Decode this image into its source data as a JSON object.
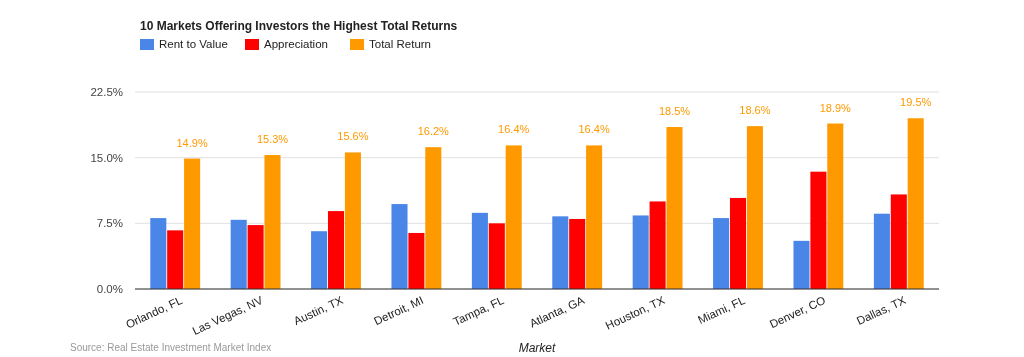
{
  "chart_data": {
    "type": "bar",
    "title": "10 Markets Offering Investors the Highest Total Returns",
    "xlabel": "Market",
    "annotations": [
      "Source: Real Estate Investment Market Index"
    ],
    "categories": [
      "Orlando, FL",
      "Las Vegas, NV",
      "Austin, TX",
      "Detroit, MI",
      "Tampa, FL",
      "Atlanta, GA",
      "Houston, TX",
      "Miami, FL",
      "Denver, CO",
      "Dallas, TX"
    ],
    "series": [
      {
        "name": "Rent to Value",
        "color": "#4a86e8",
        "values": [
          8.1,
          7.9,
          6.6,
          9.7,
          8.7,
          8.3,
          8.4,
          8.1,
          5.5,
          8.6
        ]
      },
      {
        "name": "Appreciation",
        "color": "#ff0000",
        "values": [
          6.7,
          7.3,
          8.9,
          6.4,
          7.5,
          8.0,
          10.0,
          10.4,
          13.4,
          10.8
        ]
      },
      {
        "name": "Total Return",
        "color": "#ff9900",
        "values": [
          14.9,
          15.3,
          15.6,
          16.2,
          16.4,
          16.4,
          18.5,
          18.6,
          18.9,
          19.5
        ],
        "value_labels": [
          "14.9%",
          "15.3%",
          "15.6%",
          "16.2%",
          "16.4%",
          "16.4%",
          "18.5%",
          "18.6%",
          "18.9%",
          "19.5%"
        ]
      }
    ],
    "ylim": [
      0,
      22.5
    ],
    "yticks": [
      {
        "value": 0,
        "label": "0.0%"
      },
      {
        "value": 7.5,
        "label": "7.5%"
      },
      {
        "value": 15,
        "label": "15.0%"
      },
      {
        "value": 22.5,
        "label": "22.5%"
      }
    ],
    "grid": "y",
    "legend": "top left"
  }
}
